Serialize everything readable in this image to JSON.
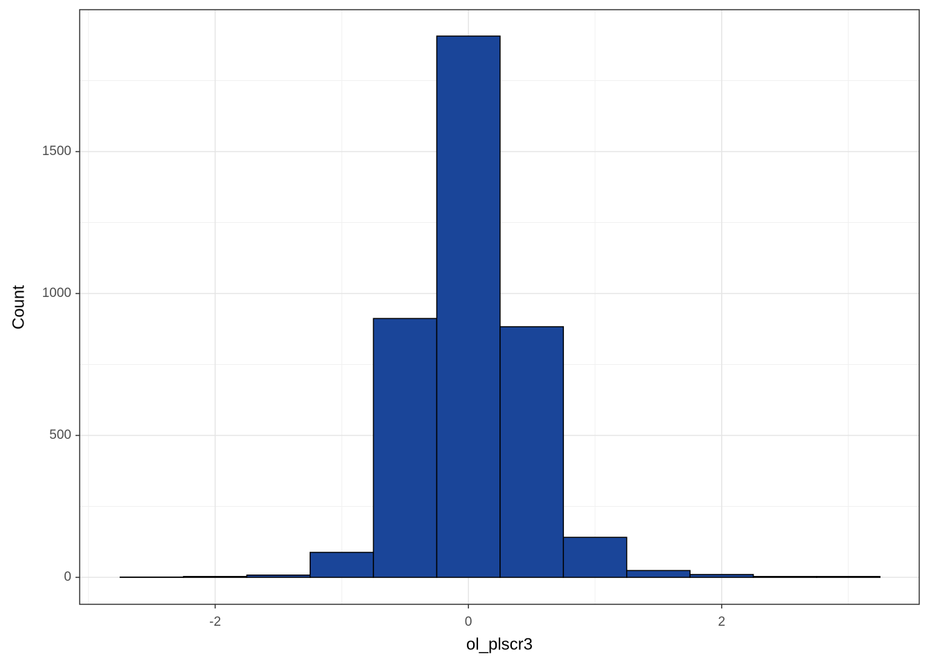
{
  "chart_data": {
    "type": "histogram",
    "x_label": "ol_plscr3",
    "y_label": "Count",
    "bins": [
      -2.75,
      -2.25,
      -1.75,
      -1.25,
      -0.75,
      -0.25,
      0.25,
      0.75,
      1.25,
      1.75,
      2.25,
      2.75,
      3.25
    ],
    "values": [
      1,
      3,
      8,
      88,
      912,
      1907,
      883,
      141,
      24,
      10,
      3,
      3
    ],
    "color": "#1a4599",
    "xlim": [
      -3.07,
      3.56
    ],
    "xticks": [
      -2,
      0,
      2
    ],
    "xminorticks": [
      -3,
      -1,
      1,
      3
    ],
    "ylim": [
      -95,
      2000
    ],
    "yticks": [
      0,
      500,
      1000,
      1500
    ],
    "yminorticks": [
      250,
      750,
      1250,
      1750
    ],
    "grid": true
  }
}
